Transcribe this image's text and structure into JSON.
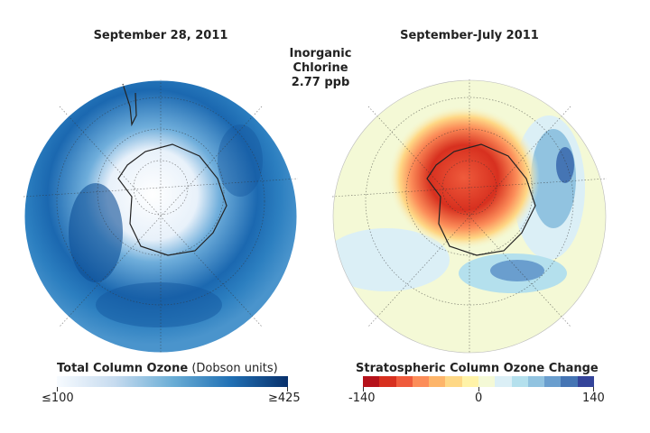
{
  "left_map": {
    "title": "September 28, 2011",
    "legend": {
      "title": "Total Column Ozone",
      "units": "(Dobson units)",
      "min_label": "≤100",
      "max_label": "≥425",
      "colors": [
        "#f7fbff",
        "#c6dbef",
        "#6baed6",
        "#2171b5",
        "#08306b"
      ]
    }
  },
  "center_annotation": {
    "line1": "Inorganic",
    "line2": "Chlorine",
    "line3": "2.77 ppb"
  },
  "right_map": {
    "title": "September-July 2011",
    "legend": {
      "title": "Stratospheric Column Ozone Change",
      "min_label": "-140",
      "mid_label": "0",
      "max_label": "140",
      "colors": [
        "#b5121b",
        "#d7301f",
        "#ef5b3c",
        "#fc8d59",
        "#fdb56a",
        "#fed886",
        "#fff3a8",
        "#f4f9d6",
        "#dbeff6",
        "#b4e0ed",
        "#91c3e0",
        "#6a9ece",
        "#4575b4",
        "#34449a"
      ]
    }
  }
}
